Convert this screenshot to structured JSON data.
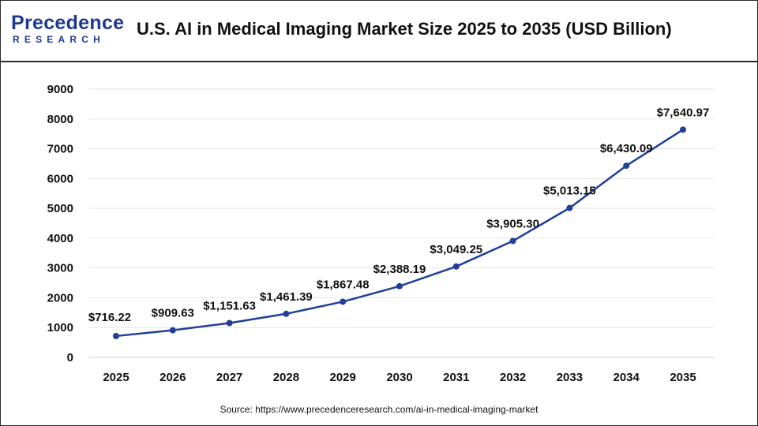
{
  "header": {
    "logo_top": "Precedence",
    "logo_bottom": "RESEARCH",
    "title": "U.S. AI in Medical Imaging Market Size 2025 to 2035 (USD Billion)"
  },
  "source": "Source: https://www.precedenceresearch.com/ai-in-medical-imaging-market",
  "colors": {
    "line": "#1f3f99",
    "grid": "#e6e6e6",
    "text": "#111111"
  },
  "chart_data": {
    "type": "line",
    "categories": [
      "2025",
      "2026",
      "2027",
      "2028",
      "2029",
      "2030",
      "2031",
      "2032",
      "2033",
      "2034",
      "2035"
    ],
    "series": [
      {
        "values": [
          716.22,
          909.63,
          1151.63,
          1461.39,
          1867.48,
          2388.19,
          3049.25,
          3905.3,
          5013.15,
          6430.09,
          7640.97
        ],
        "labels": [
          "$716.22",
          "$909.63",
          "$1,151.63",
          "$1,461.39",
          "$1,867.48",
          "$2,388.19",
          "$3,049.25",
          "$3,905.30",
          "$5,013.15",
          "$6,430.09",
          "$7,640.97"
        ]
      }
    ],
    "y_ticks": [
      "0",
      "1000",
      "2000",
      "3000",
      "4000",
      "5000",
      "6000",
      "7000",
      "8000",
      "9000"
    ],
    "ylim": [
      0,
      9000
    ],
    "grid": true,
    "legend": "none",
    "title": "U.S. AI in Medical Imaging Market Size 2025 to 2035 (USD Billion)",
    "xlabel": "",
    "ylabel": ""
  }
}
